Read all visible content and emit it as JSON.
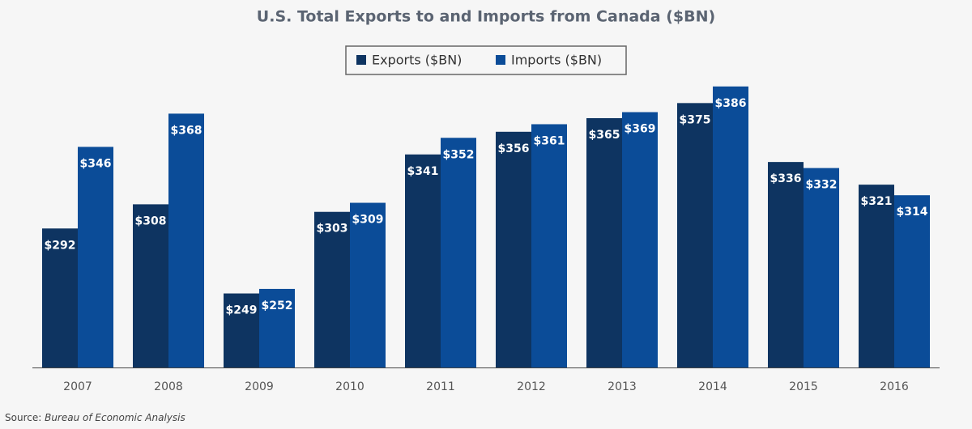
{
  "chart_data": {
    "type": "bar",
    "title": "U.S. Total Exports to and Imports from Canada ($BN)",
    "categories": [
      "2007",
      "2008",
      "2009",
      "2010",
      "2011",
      "2012",
      "2013",
      "2014",
      "2015",
      "2016"
    ],
    "series": [
      {
        "name": "Exports ($BN)",
        "color": "#0e3461",
        "values": [
          292,
          308,
          249,
          303,
          341,
          356,
          365,
          375,
          336,
          321
        ],
        "value_labels": [
          "$292",
          "$308",
          "$249",
          "$303",
          "$341",
          "$356",
          "$365",
          "$375",
          "$336",
          "$321"
        ]
      },
      {
        "name": "Imports ($BN)",
        "color": "#0b4c98",
        "values": [
          346,
          368,
          252,
          309,
          352,
          361,
          369,
          386,
          332,
          314
        ],
        "value_labels": [
          "$346",
          "$368",
          "$252",
          "$309",
          "$352",
          "$361",
          "$369",
          "$386",
          "$332",
          "$314"
        ]
      }
    ],
    "ylim": [
      200,
      395
    ],
    "legend": "top",
    "source_prefix": "Source:",
    "source": "Bureau of Economic Analysis"
  }
}
